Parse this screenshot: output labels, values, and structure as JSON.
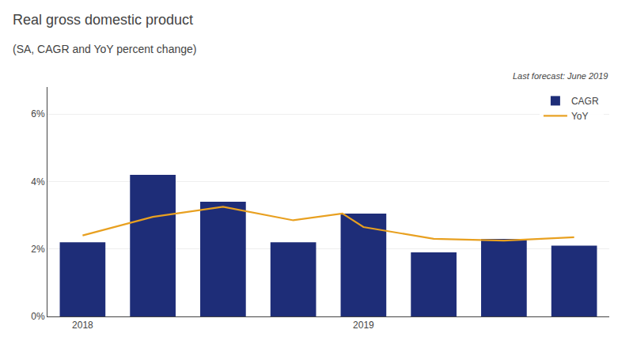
{
  "chart_data": {
    "type": "bar",
    "title": "Real gross domestic product",
    "subtitle": "(SA, CAGR and YoY percent change)",
    "annotations": [
      "Last forecast: June 2019"
    ],
    "categories": [
      "2018",
      null,
      null,
      null,
      "2019",
      null,
      null,
      null
    ],
    "series": [
      {
        "name": "CAGR",
        "type": "bar",
        "color": "#1e2d78",
        "values": [
          2.2,
          4.2,
          3.4,
          2.2,
          3.05,
          1.9,
          2.3,
          2.1
        ]
      },
      {
        "name": "YoY",
        "type": "line",
        "color": "#e8a020",
        "x": [
          0,
          1,
          2,
          3,
          3.7,
          4,
          5,
          6,
          7
        ],
        "values": [
          2.4,
          2.95,
          3.25,
          2.85,
          3.05,
          2.65,
          2.3,
          2.25,
          2.35
        ]
      }
    ],
    "ylim": [
      0,
      6.8
    ],
    "yticks": [
      {
        "value": 0,
        "label": "0%"
      },
      {
        "value": 2,
        "label": "2%"
      },
      {
        "value": 4,
        "label": "4%"
      },
      {
        "value": 6,
        "label": "6%"
      }
    ],
    "grid": true,
    "legend": "upper right"
  }
}
